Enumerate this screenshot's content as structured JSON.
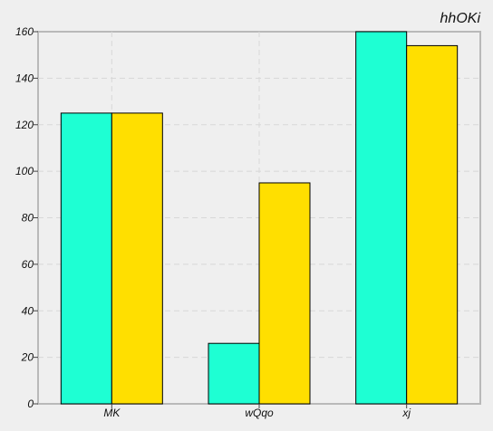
{
  "chart_data": {
    "type": "bar",
    "title": "hhOKi",
    "xlabel": "",
    "ylabel": "",
    "categories": [
      "MK",
      "wQqo",
      "xj"
    ],
    "series": [
      {
        "values": [
          125,
          26,
          160
        ],
        "color": "#1effd3"
      },
      {
        "values": [
          125,
          95,
          154
        ],
        "color": "#ffdf00"
      }
    ],
    "ylim": [
      0,
      160
    ],
    "yticks": [
      0,
      20,
      40,
      60,
      80,
      100,
      120,
      140,
      160
    ],
    "grid": true,
    "legend": "none"
  }
}
